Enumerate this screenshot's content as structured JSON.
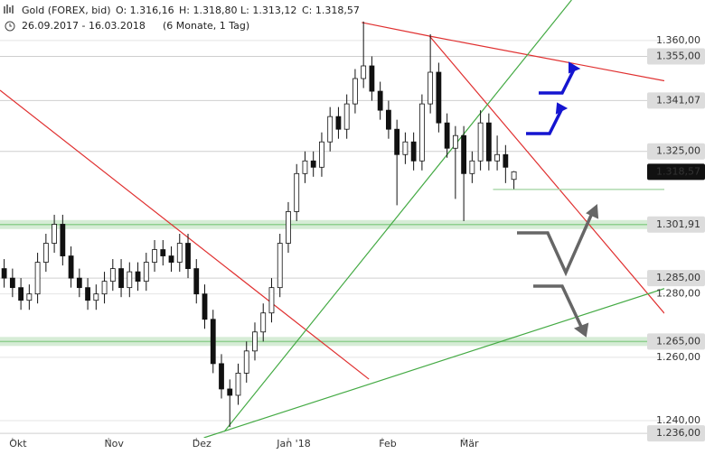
{
  "chart_data": {
    "type": "candlestick",
    "title": "Gold (FOREX, bid)",
    "ohlc_labels": [
      "O: 1.316,16",
      "H: 1.318,80",
      "L: 1.313,12",
      "C: 1.318,57"
    ],
    "subtitle": "26.09.2017 - 16.03.2018",
    "period": "(6 Monate, 1 Tag)",
    "x": [
      0,
      2,
      4,
      6,
      8,
      10,
      12,
      14,
      16,
      18,
      20,
      22,
      24,
      26,
      28,
      30,
      32,
      34,
      36,
      38,
      40,
      42,
      44,
      46,
      48,
      50,
      52,
      54,
      56,
      58,
      60,
      62,
      64,
      66,
      68,
      70,
      72,
      74,
      76,
      78,
      80,
      82,
      84,
      86,
      88,
      90,
      92,
      94,
      96,
      98,
      100,
      102,
      104,
      106,
      108,
      110,
      112,
      114,
      116,
      118,
      120,
      122
    ],
    "ohlc": [
      [
        1288,
        1291,
        1282,
        1285
      ],
      [
        1285,
        1288,
        1279,
        1282
      ],
      [
        1282,
        1285,
        1275,
        1278
      ],
      [
        1278,
        1283,
        1275,
        1280
      ],
      [
        1280,
        1293,
        1277,
        1290
      ],
      [
        1290,
        1299,
        1287,
        1296
      ],
      [
        1296,
        1305,
        1293,
        1302
      ],
      [
        1302,
        1305,
        1289,
        1292
      ],
      [
        1292,
        1295,
        1282,
        1285
      ],
      [
        1285,
        1288,
        1279,
        1282
      ],
      [
        1282,
        1285,
        1275,
        1278
      ],
      [
        1278,
        1283,
        1275,
        1280
      ],
      [
        1280,
        1287,
        1277,
        1284
      ],
      [
        1284,
        1291,
        1281,
        1288
      ],
      [
        1288,
        1291,
        1279,
        1282
      ],
      [
        1282,
        1290,
        1279,
        1287
      ],
      [
        1287,
        1290,
        1281,
        1284
      ],
      [
        1284,
        1293,
        1281,
        1290
      ],
      [
        1290,
        1297,
        1287,
        1294
      ],
      [
        1294,
        1297,
        1289,
        1292
      ],
      [
        1292,
        1295,
        1287,
        1290
      ],
      [
        1290,
        1299,
        1287,
        1296
      ],
      [
        1296,
        1299,
        1285,
        1288
      ],
      [
        1288,
        1291,
        1277,
        1280
      ],
      [
        1280,
        1283,
        1269,
        1272
      ],
      [
        1272,
        1275,
        1255,
        1258
      ],
      [
        1258,
        1261,
        1247,
        1250
      ],
      [
        1250,
        1253,
        1238,
        1248
      ],
      [
        1248,
        1258,
        1245,
        1255
      ],
      [
        1255,
        1265,
        1252,
        1262
      ],
      [
        1262,
        1271,
        1259,
        1268
      ],
      [
        1268,
        1277,
        1265,
        1274
      ],
      [
        1274,
        1285,
        1271,
        1282
      ],
      [
        1282,
        1299,
        1279,
        1296
      ],
      [
        1296,
        1309,
        1293,
        1306
      ],
      [
        1306,
        1321,
        1303,
        1318
      ],
      [
        1318,
        1325,
        1315,
        1322
      ],
      [
        1322,
        1325,
        1317,
        1320
      ],
      [
        1320,
        1331,
        1317,
        1328
      ],
      [
        1328,
        1339,
        1325,
        1336
      ],
      [
        1336,
        1339,
        1329,
        1332
      ],
      [
        1332,
        1343,
        1329,
        1340
      ],
      [
        1340,
        1351,
        1337,
        1348
      ],
      [
        1348,
        1366,
        1345,
        1352
      ],
      [
        1352,
        1355,
        1341,
        1344
      ],
      [
        1344,
        1347,
        1335,
        1338
      ],
      [
        1338,
        1341,
        1329,
        1332
      ],
      [
        1332,
        1335,
        1308,
        1324
      ],
      [
        1324,
        1331,
        1321,
        1328
      ],
      [
        1328,
        1331,
        1319,
        1322
      ],
      [
        1322,
        1343,
        1319,
        1340
      ],
      [
        1340,
        1362,
        1337,
        1350
      ],
      [
        1350,
        1353,
        1331,
        1334
      ],
      [
        1334,
        1337,
        1323,
        1326
      ],
      [
        1326,
        1333,
        1310,
        1330
      ],
      [
        1330,
        1333,
        1303,
        1318
      ],
      [
        1318,
        1325,
        1315,
        1322
      ],
      [
        1322,
        1338,
        1319,
        1334
      ],
      [
        1334,
        1337,
        1319,
        1322
      ],
      [
        1322,
        1330,
        1319,
        1324
      ],
      [
        1324,
        1327,
        1315,
        1320
      ],
      [
        1316.16,
        1318.8,
        1313.12,
        1318.57
      ]
    ],
    "xlim": [
      -1,
      158
    ],
    "xticks": [
      {
        "value": 2,
        "label": "Okt"
      },
      {
        "value": 25,
        "label": "Nov"
      },
      {
        "value": 46,
        "label": "Dez"
      },
      {
        "value": 68,
        "label": "Jan '18"
      },
      {
        "value": 90.5,
        "label": "Feb"
      },
      {
        "value": 110,
        "label": "Mär"
      }
    ],
    "ylim": [
      1234.6,
      1372.8
    ],
    "yticks": [
      {
        "value": 1360,
        "label": "1.360,00"
      },
      {
        "value": 1280,
        "label": "1.280,00"
      },
      {
        "value": 1260,
        "label": "1.260,00"
      },
      {
        "value": 1240,
        "label": "1.240,00"
      }
    ],
    "levels": [
      {
        "value": 1355,
        "label": "1.355,00",
        "style": "line"
      },
      {
        "value": 1341.07,
        "label": "1.341,07",
        "style": "line"
      },
      {
        "value": 1325,
        "label": "1.325,00",
        "style": "line"
      },
      {
        "value": 1318.57,
        "label": "1.318,57",
        "style": "current"
      },
      {
        "value": 1301.91,
        "label": "1.301,91",
        "style": "band"
      },
      {
        "value": 1285,
        "label": "1.285,00",
        "style": "line"
      },
      {
        "value": 1265,
        "label": "1.265,00",
        "style": "band"
      },
      {
        "value": 1236,
        "label": "1.236,00",
        "style": "line"
      }
    ],
    "trendlines": [
      {
        "x": [
          -1,
          87.3
        ],
        "values": [
          1344.3,
          1253.1
        ],
        "color": "#e03030"
      },
      {
        "x": [
          85.6,
          101.8
        ],
        "values": [
          1365.7,
          1361.4
        ],
        "color": "#e03030"
      },
      {
        "x": [
          101.8,
          158
        ],
        "values": [
          1361.4,
          1347.3
        ],
        "color": "#e03030"
      },
      {
        "x": [
          101.8,
          158
        ],
        "values": [
          1361.4,
          1273.9
        ],
        "color": "#e03030"
      },
      {
        "x": [
          52.7,
          135.8
        ],
        "values": [
          1236.6,
          1372.8
        ],
        "color": "#44aa44"
      },
      {
        "x": [
          47.8,
          158
        ],
        "values": [
          1234.6,
          1281.7
        ],
        "color": "#44aa44"
      },
      {
        "x": [
          117,
          158
        ],
        "values": [
          1313,
          1313
        ],
        "color": "#9fd39f"
      }
    ]
  }
}
